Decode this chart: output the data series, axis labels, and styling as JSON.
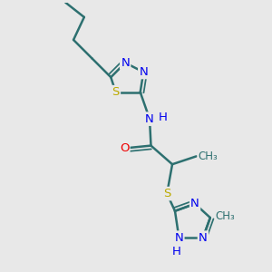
{
  "bg_color": "#e8e8e8",
  "bond_color": "#2d7070",
  "bond_width": 1.8,
  "atom_colors": {
    "N": "#0000ee",
    "S": "#bbaa00",
    "O": "#ee0000",
    "C": "#2d7070",
    "H": "#2d7070"
  },
  "font_size": 9.5,
  "small_font": 8.5
}
